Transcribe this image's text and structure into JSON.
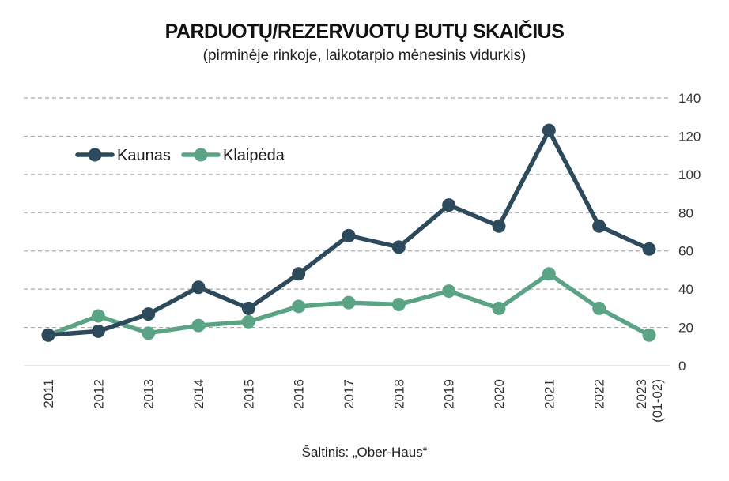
{
  "chart_data": {
    "type": "line",
    "title": "PARDUOTŲ/REZERVUOTŲ BUTŲ SKAIČIUS",
    "subtitle": "(pirminėje rinkoje, laikotarpio mėnesinis vidurkis)",
    "source": "Šaltinis: „Ober-Haus“",
    "categories": [
      "2011",
      "2012",
      "2013",
      "2014",
      "2015",
      "2016",
      "2017",
      "2018",
      "2019",
      "2020",
      "2021",
      "2022",
      "2023\n(01-02)"
    ],
    "series": [
      {
        "name": "Kaunas",
        "color": "#2d4a5c",
        "values": [
          16,
          18,
          27,
          41,
          30,
          48,
          68,
          62,
          84,
          73,
          123,
          73,
          61
        ]
      },
      {
        "name": "Klaipėda",
        "color": "#5aa384",
        "values": [
          16,
          26,
          17,
          21,
          23,
          31,
          33,
          32,
          39,
          30,
          48,
          30,
          16
        ]
      }
    ],
    "ylim": [
      0,
      140
    ],
    "yticks": [
      0,
      20,
      40,
      60,
      80,
      100,
      120,
      140
    ],
    "grid": true,
    "legend": "top-left"
  }
}
